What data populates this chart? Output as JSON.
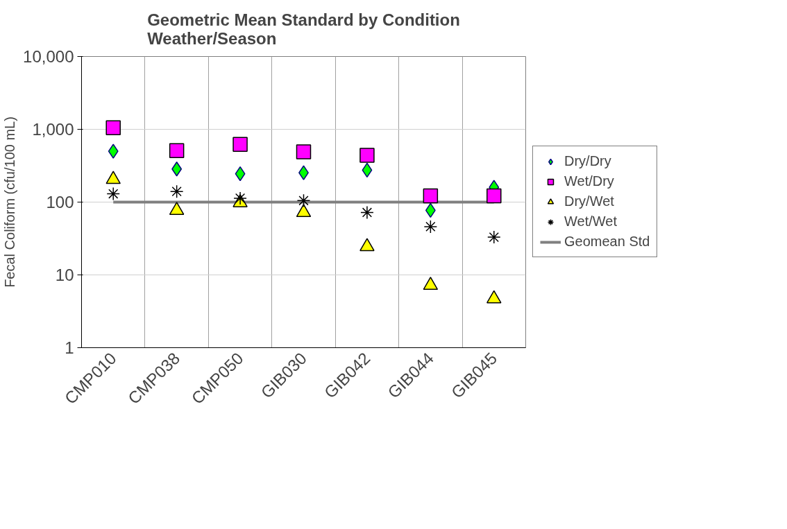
{
  "chart_data": {
    "type": "scatter",
    "title": "Geometric Mean Standard by Condition\nWeather/Season",
    "ylabel": "Fecal Coliform (cfu/100 mL)",
    "categories": [
      "CMP010",
      "CMP038",
      "CMP050",
      "GIB030",
      "GIB042",
      "GIB044",
      "GIB045"
    ],
    "series": [
      {
        "name": "Dry/Dry",
        "color": "#00ff00",
        "marker": "diamond",
        "values": [
          500,
          285,
          245,
          253,
          275,
          77,
          160
        ]
      },
      {
        "name": "Wet/Dry",
        "color": "#ff00ff",
        "marker": "square",
        "values": [
          1050,
          510,
          620,
          490,
          440,
          122,
          122
        ]
      },
      {
        "name": "Dry/Wet",
        "color": "#ffff00",
        "marker": "triangle",
        "values": [
          205,
          77,
          98,
          72,
          24.5,
          7.2,
          4.7
        ]
      },
      {
        "name": "Wet/Wet",
        "color": "#000000",
        "marker": "cross",
        "values": [
          130,
          140,
          113,
          105,
          72,
          46,
          33
        ]
      },
      {
        "name": "Geomean Std",
        "type": "line",
        "color": "#808080",
        "marker": "none",
        "values": [
          100,
          100,
          100,
          100,
          100,
          100,
          100
        ]
      }
    ],
    "log": "y",
    "ylim": [
      1,
      10000
    ],
    "yticks": [
      1,
      10,
      100,
      {
        "value": 1000,
        "label": "1,000"
      },
      {
        "value": 10000,
        "label": "10,000"
      }
    ],
    "grid": true,
    "legend": "right"
  }
}
